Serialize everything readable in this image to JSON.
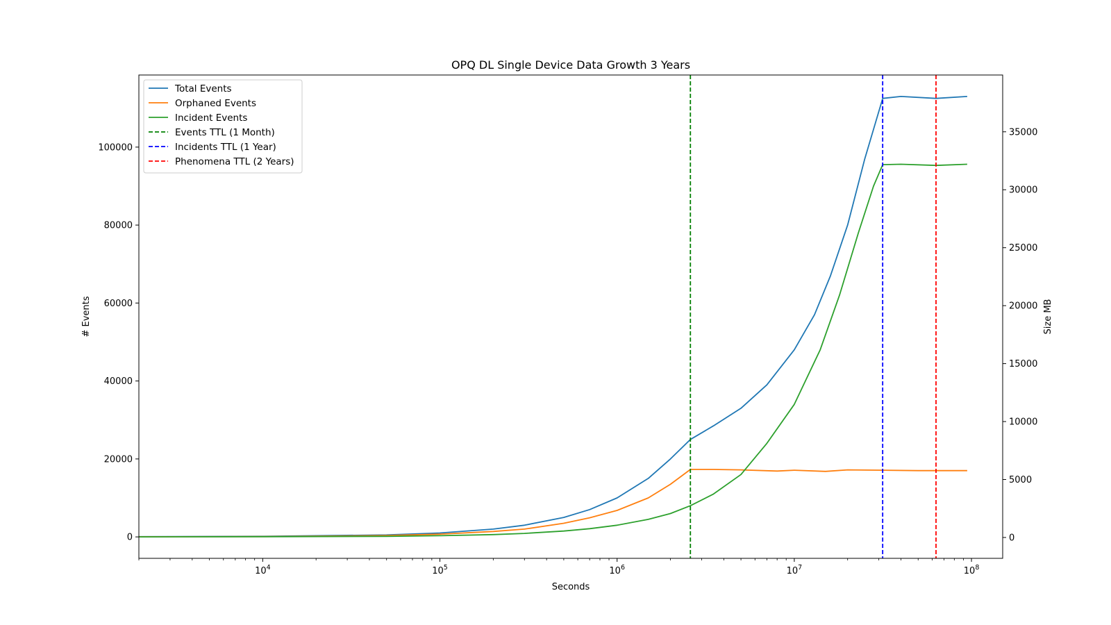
{
  "chart_data": {
    "type": "line",
    "title": "OPQ DL Single Device Data Growth 3 Years",
    "xlabel": "Seconds",
    "ylabel": "# Events",
    "y2label": "Size MB",
    "xscale": "log",
    "xlim": [
      2000,
      150000000
    ],
    "ylim": [
      -5500,
      118500
    ],
    "y2lim": [
      -1800,
      39900
    ],
    "x_ticks": [
      10000,
      100000,
      1000000,
      10000000,
      100000000
    ],
    "x_tick_labels": [
      {
        "base": "10",
        "exp": "4"
      },
      {
        "base": "10",
        "exp": "5"
      },
      {
        "base": "10",
        "exp": "6"
      },
      {
        "base": "10",
        "exp": "7"
      },
      {
        "base": "10",
        "exp": "8"
      }
    ],
    "y_ticks": [
      0,
      20000,
      40000,
      60000,
      80000,
      100000
    ],
    "y2_ticks": [
      0,
      5000,
      10000,
      15000,
      20000,
      25000,
      30000,
      35000
    ],
    "grid": false,
    "legend_position": "upper-left",
    "series": [
      {
        "name": "Total Events",
        "color": "#1f77b4",
        "points": [
          [
            2000,
            50
          ],
          [
            10000,
            150
          ],
          [
            50000,
            500
          ],
          [
            100000,
            1000
          ],
          [
            200000,
            2000
          ],
          [
            300000,
            3000
          ],
          [
            500000,
            5000
          ],
          [
            700000,
            7000
          ],
          [
            1000000,
            10000
          ],
          [
            1500000,
            15000
          ],
          [
            2000000,
            20000
          ],
          [
            2592000,
            25000
          ],
          [
            3500000,
            28500
          ],
          [
            5000000,
            33000
          ],
          [
            7000000,
            39000
          ],
          [
            10000000,
            48000
          ],
          [
            13000000,
            57000
          ],
          [
            16000000,
            67000
          ],
          [
            20000000,
            80000
          ],
          [
            25000000,
            97000
          ],
          [
            31536000,
            112500
          ],
          [
            40000000,
            113000
          ],
          [
            63072000,
            112500
          ],
          [
            94608000,
            113000
          ]
        ]
      },
      {
        "name": "Orphaned Events",
        "color": "#ff7f0e",
        "points": [
          [
            2000,
            20
          ],
          [
            10000,
            80
          ],
          [
            50000,
            350
          ],
          [
            100000,
            700
          ],
          [
            200000,
            1400
          ],
          [
            300000,
            2000
          ],
          [
            500000,
            3500
          ],
          [
            700000,
            4900
          ],
          [
            1000000,
            6800
          ],
          [
            1500000,
            10000
          ],
          [
            2000000,
            13500
          ],
          [
            2592000,
            17300
          ],
          [
            3500000,
            17300
          ],
          [
            5000000,
            17200
          ],
          [
            8000000,
            16900
          ],
          [
            10000000,
            17100
          ],
          [
            15000000,
            16800
          ],
          [
            20000000,
            17200
          ],
          [
            31536000,
            17100
          ],
          [
            50000000,
            17000
          ],
          [
            63072000,
            17000
          ],
          [
            94608000,
            17000
          ]
        ]
      },
      {
        "name": "Incident Events",
        "color": "#2ca02c",
        "points": [
          [
            2000,
            10
          ],
          [
            10000,
            50
          ],
          [
            50000,
            150
          ],
          [
            100000,
            300
          ],
          [
            200000,
            600
          ],
          [
            300000,
            900
          ],
          [
            500000,
            1500
          ],
          [
            700000,
            2100
          ],
          [
            1000000,
            3000
          ],
          [
            1500000,
            4500
          ],
          [
            2000000,
            6000
          ],
          [
            2592000,
            8000
          ],
          [
            3500000,
            11000
          ],
          [
            5000000,
            16000
          ],
          [
            7000000,
            24000
          ],
          [
            10000000,
            34000
          ],
          [
            14000000,
            48000
          ],
          [
            18000000,
            62000
          ],
          [
            23000000,
            78000
          ],
          [
            28000000,
            90000
          ],
          [
            31536000,
            95500
          ],
          [
            40000000,
            95600
          ],
          [
            63072000,
            95300
          ],
          [
            94608000,
            95600
          ]
        ]
      }
    ],
    "vlines": [
      {
        "name": "Events TTL (1 Month)",
        "x": 2592000,
        "color": "#008000"
      },
      {
        "name": "Incidents TTL (1 Year)",
        "x": 31536000,
        "color": "#0000ff"
      },
      {
        "name": "Phenomena TTL (2 Years)",
        "x": 63072000,
        "color": "#ff0000"
      }
    ]
  }
}
